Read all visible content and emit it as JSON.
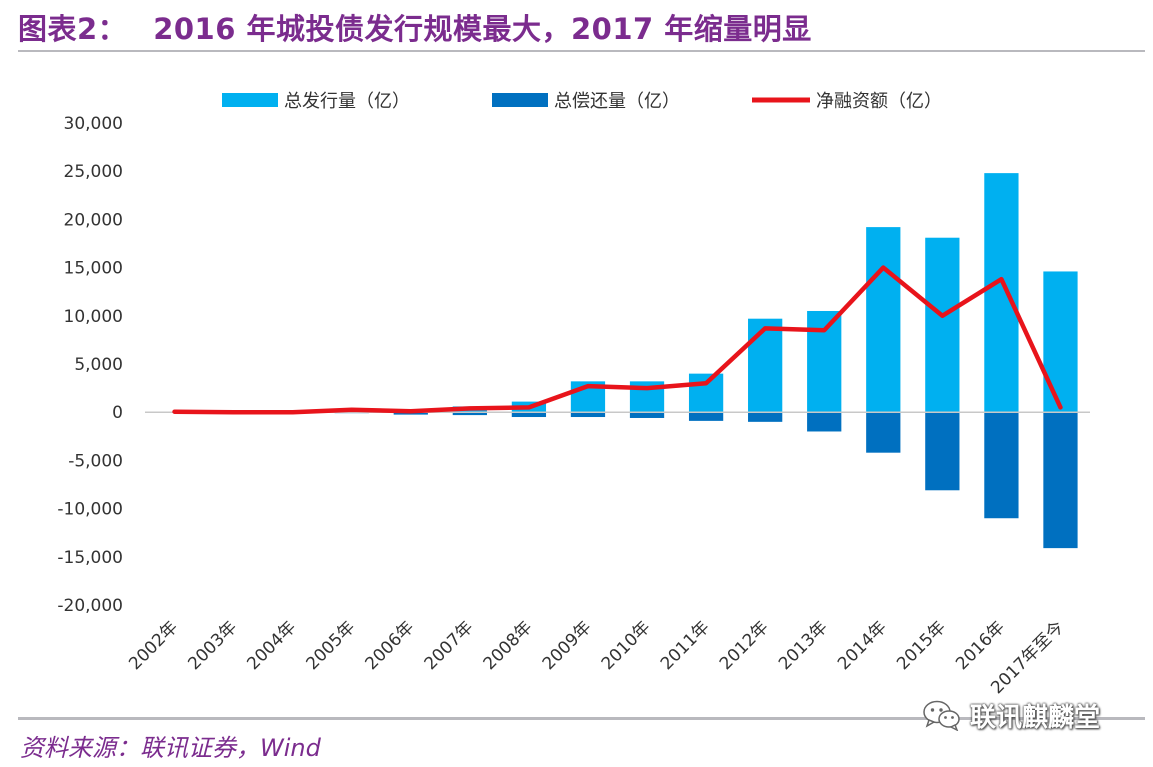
{
  "header": {
    "figure_label": "图表2：",
    "title": "2016 年城投债发行规模最大，2017 年缩量明显"
  },
  "footer": {
    "source": "资料来源：联讯证券，Wind",
    "watermark": "联讯麒麟堂"
  },
  "colors": {
    "title": "#7B2C8E",
    "issuance": "#00B0F0",
    "repayment": "#0070C0",
    "net": "#E8141B",
    "rule": "#B9B9BE"
  },
  "chart_data": {
    "type": "bar",
    "title": "2016 年城投债发行规模最大，2017 年缩量明显",
    "xlabel": "",
    "ylabel": "",
    "categories": [
      "2002年",
      "2003年",
      "2004年",
      "2005年",
      "2006年",
      "2007年",
      "2008年",
      "2009年",
      "2010年",
      "2011年",
      "2012年",
      "2013年",
      "2014年",
      "2015年",
      "2016年",
      "2017年至今"
    ],
    "yticks": [
      "30,000",
      "25,000",
      "20,000",
      "15,000",
      "10,000",
      "5,000",
      "0",
      "-5,000",
      "-10,000",
      "-15,000",
      "-20,000"
    ],
    "ylim": [
      -20000,
      30000
    ],
    "legend_position": "top",
    "series": [
      {
        "name": "总发行量（亿）",
        "type": "bar",
        "values": [
          50,
          80,
          100,
          350,
          300,
          600,
          1100,
          3200,
          3200,
          4000,
          9700,
          10500,
          19200,
          18100,
          24800,
          14600
        ]
      },
      {
        "name": "总偿还量（亿）",
        "type": "bar",
        "values": [
          -20,
          -50,
          -60,
          -100,
          -250,
          -300,
          -500,
          -500,
          -600,
          -900,
          -1000,
          -2000,
          -4200,
          -8100,
          -11000,
          -14100
        ]
      },
      {
        "name": "净融资额（亿）",
        "type": "line",
        "values": [
          50,
          0,
          0,
          250,
          100,
          400,
          500,
          2700,
          2500,
          3000,
          8700,
          8500,
          15000,
          10000,
          13800,
          500
        ]
      }
    ]
  }
}
